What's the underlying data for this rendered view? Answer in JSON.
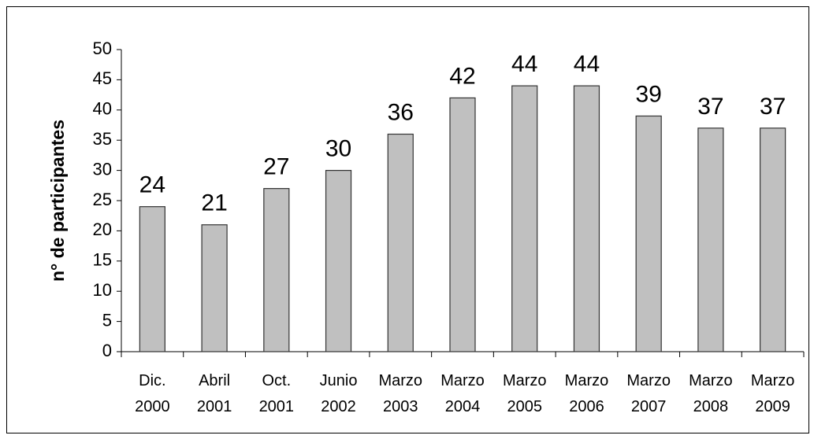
{
  "chart_data": {
    "type": "bar",
    "y_label": "n° de participantes",
    "categories": [
      "Dic. 2000",
      "Abril 2001",
      "Oct. 2001",
      "Junio 2002",
      "Marzo 2003",
      "Marzo 2004",
      "Marzo 2005",
      "Marzo 2006",
      "Marzo 2007",
      "Marzo 2008",
      "Marzo 2009"
    ],
    "values": [
      24,
      21,
      27,
      30,
      36,
      42,
      44,
      44,
      39,
      37,
      37
    ],
    "color": "#c0c0c0",
    "ylim": [
      0,
      50
    ],
    "yticks": [
      0,
      5,
      10,
      15,
      20,
      25,
      30,
      35,
      40,
      45,
      50
    ],
    "grid": false
  }
}
